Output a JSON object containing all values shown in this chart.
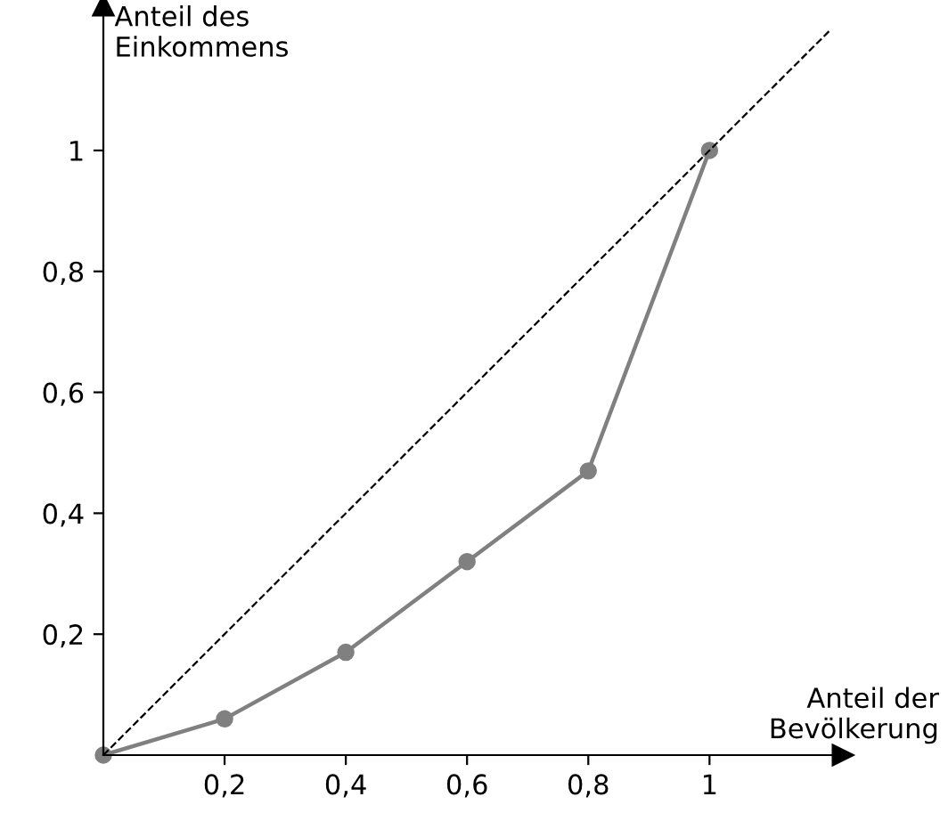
{
  "chart_data": {
    "type": "line",
    "xlabel": "Anteil der\nBevölkerung",
    "ylabel": "Anteil des\nEinkommens",
    "series": [
      {
        "x": [
          0,
          0.2,
          0.4,
          0.6,
          0.8,
          1
        ],
        "values": [
          0,
          0.06,
          0.17,
          0.32,
          0.47,
          1
        ],
        "color": "#808080",
        "marker": "circle",
        "line_style": "solid"
      },
      {
        "x": [
          0,
          1.2
        ],
        "values": [
          0,
          1.2
        ],
        "color": "#000000",
        "marker": "none",
        "line_style": "dashed"
      }
    ],
    "xlim": [
      0,
      1.22
    ],
    "ylim": [
      0,
      1.24
    ],
    "xticks": [
      {
        "value": 0.2,
        "label": "0,2"
      },
      {
        "value": 0.4,
        "label": "0,4"
      },
      {
        "value": 0.6,
        "label": "0,6"
      },
      {
        "value": 0.8,
        "label": "0,8"
      },
      1
    ],
    "yticks": [
      {
        "value": 0.2,
        "label": "0,2"
      },
      {
        "value": 0.4,
        "label": "0,4"
      },
      {
        "value": 0.6,
        "label": "0,6"
      },
      {
        "value": 0.8,
        "label": "0,8"
      },
      1
    ],
    "grid": false,
    "legend": false
  }
}
